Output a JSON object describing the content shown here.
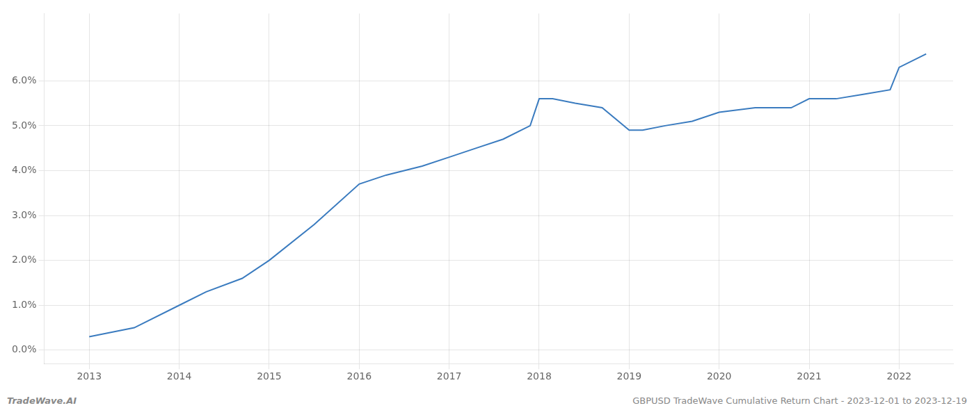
{
  "chart_data": {
    "type": "line",
    "x": [
      2013,
      2013.5,
      2014,
      2014.3,
      2014.7,
      2015,
      2015.5,
      2016,
      2016.3,
      2016.7,
      2017,
      2017.3,
      2017.6,
      2017.9,
      2018,
      2018.15,
      2018.4,
      2018.7,
      2019,
      2019.15,
      2019.4,
      2019.7,
      2020,
      2020.4,
      2020.8,
      2021,
      2021.3,
      2021.6,
      2021.9,
      2022,
      2022.3
    ],
    "values": [
      0.003,
      0.005,
      0.01,
      0.013,
      0.016,
      0.02,
      0.028,
      0.037,
      0.039,
      0.041,
      0.043,
      0.045,
      0.047,
      0.05,
      0.056,
      0.056,
      0.055,
      0.054,
      0.049,
      0.049,
      0.05,
      0.051,
      0.053,
      0.054,
      0.054,
      0.056,
      0.056,
      0.057,
      0.058,
      0.063,
      0.066
    ],
    "color": "#3a7bbf",
    "xlim": [
      2012.5,
      2022.6
    ],
    "xticks": [
      2013,
      2014,
      2015,
      2016,
      2017,
      2018,
      2019,
      2020,
      2021,
      2022
    ],
    "ylim": [
      -0.003,
      0.075
    ],
    "yticks": [
      {
        "value": 0.0,
        "label": "0.0%"
      },
      {
        "value": 0.01,
        "label": "1.0%"
      },
      {
        "value": 0.02,
        "label": "2.0%"
      },
      {
        "value": 0.03,
        "label": "3.0%"
      },
      {
        "value": 0.04,
        "label": "4.0%"
      },
      {
        "value": 0.05,
        "label": "5.0%"
      },
      {
        "value": 0.06,
        "label": "6.0%"
      }
    ],
    "grid": true,
    "annotations": [
      "TradeWave.AI",
      "GBPUSD TradeWave Cumulative Return Chart - 2023-12-01 to 2023-12-19"
    ]
  }
}
